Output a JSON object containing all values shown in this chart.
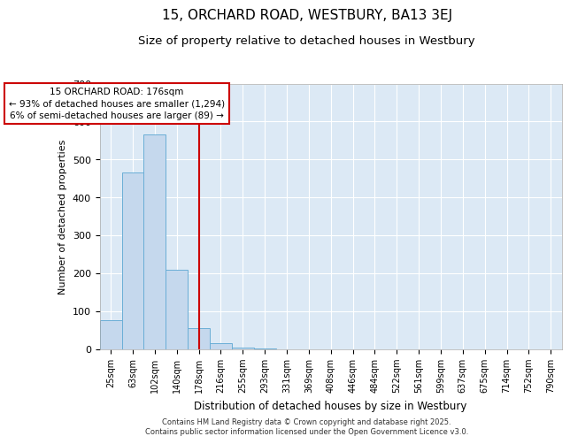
{
  "title": "15, ORCHARD ROAD, WESTBURY, BA13 3EJ",
  "subtitle": "Size of property relative to detached houses in Westbury",
  "xlabel": "Distribution of detached houses by size in Westbury",
  "ylabel": "Number of detached properties",
  "bar_labels": [
    "25sqm",
    "63sqm",
    "102sqm",
    "140sqm",
    "178sqm",
    "216sqm",
    "255sqm",
    "293sqm",
    "331sqm",
    "369sqm",
    "408sqm",
    "446sqm",
    "484sqm",
    "522sqm",
    "561sqm",
    "599sqm",
    "637sqm",
    "675sqm",
    "714sqm",
    "752sqm",
    "790sqm"
  ],
  "bar_values": [
    75,
    465,
    565,
    210,
    55,
    15,
    3,
    1,
    0,
    0,
    0,
    0,
    0,
    0,
    0,
    0,
    0,
    0,
    0,
    0,
    0
  ],
  "bar_color": "#c5d8ed",
  "bar_edgecolor": "#6aaed6",
  "vline_x": 4.0,
  "vline_color": "#cc0000",
  "annotation_line1": "15 ORCHARD ROAD: 176sqm",
  "annotation_line2": "← 93% of detached houses are smaller (1,294)",
  "annotation_line3": "6% of semi-detached houses are larger (89) →",
  "annotation_box_color": "#cc0000",
  "annotation_bg": "#ffffff",
  "ylim": [
    0,
    700
  ],
  "yticks": [
    0,
    100,
    200,
    300,
    400,
    500,
    600,
    700
  ],
  "background_color": "#dce9f5",
  "grid_color": "#ffffff",
  "footer_line1": "Contains HM Land Registry data © Crown copyright and database right 2025.",
  "footer_line2": "Contains public sector information licensed under the Open Government Licence v3.0.",
  "title_fontsize": 11,
  "subtitle_fontsize": 9.5,
  "xlabel_fontsize": 8.5,
  "ylabel_fontsize": 8,
  "tick_fontsize": 7,
  "annotation_fontsize": 7.5,
  "footer_fontsize": 6
}
